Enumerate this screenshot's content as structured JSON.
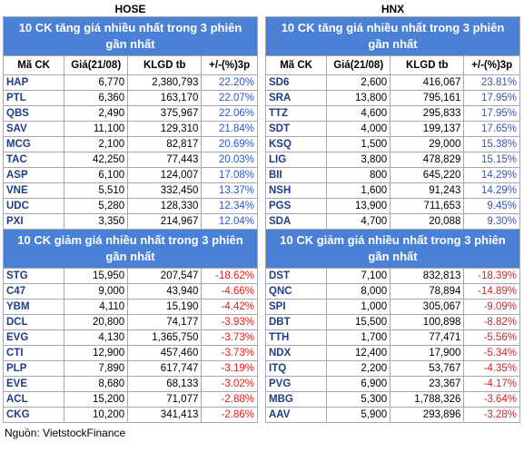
{
  "exchanges": [
    {
      "name": "HOSE",
      "columns": [
        "Mã CK",
        "Giá(21/08)",
        "KLGD tb",
        "+/-(%)3p"
      ],
      "gainers": {
        "title": "10 CK tăng giá nhiều nhất trong 3 phiên gần nhất",
        "rows": [
          [
            "HAP",
            "6,770",
            "2,380,793",
            "22.20%"
          ],
          [
            "PTL",
            "6,360",
            "163,170",
            "22.07%"
          ],
          [
            "QBS",
            "2,490",
            "375,967",
            "22.06%"
          ],
          [
            "SAV",
            "11,100",
            "129,310",
            "21.84%"
          ],
          [
            "MCG",
            "2,100",
            "82,817",
            "20.69%"
          ],
          [
            "TAC",
            "42,250",
            "77,443",
            "20.03%"
          ],
          [
            "ASP",
            "6,100",
            "124,007",
            "17.08%"
          ],
          [
            "VNE",
            "5,510",
            "332,450",
            "13.37%"
          ],
          [
            "UDC",
            "5,280",
            "128,330",
            "12.34%"
          ],
          [
            "PXI",
            "3,350",
            "214,967",
            "12.04%"
          ]
        ]
      },
      "losers": {
        "title": "10 CK giảm giá nhiều nhất trong 3 phiên gần nhất",
        "rows": [
          [
            "STG",
            "15,950",
            "207,547",
            "-18.62%"
          ],
          [
            "C47",
            "9,000",
            "43,940",
            "-4.66%"
          ],
          [
            "YBM",
            "4,110",
            "15,190",
            "-4.42%"
          ],
          [
            "DCL",
            "20,800",
            "74,177",
            "-3.93%"
          ],
          [
            "EVG",
            "4,130",
            "1,365,750",
            "-3.73%"
          ],
          [
            "CTI",
            "12,900",
            "457,460",
            "-3.73%"
          ],
          [
            "PLP",
            "7,890",
            "617,747",
            "-3.19%"
          ],
          [
            "EVE",
            "8,680",
            "68,133",
            "-3.02%"
          ],
          [
            "ACL",
            "15,200",
            "71,077",
            "-2.88%"
          ],
          [
            "CKG",
            "10,200",
            "341,413",
            "-2.86%"
          ]
        ]
      }
    },
    {
      "name": "HNX",
      "columns": [
        "Mã CK",
        "Giá(21/08)",
        "KLGD tb",
        "+/-(%)3p"
      ],
      "gainers": {
        "title": "10 CK tăng giá nhiều nhất trong 3 phiên gần nhất",
        "rows": [
          [
            "SD6",
            "2,600",
            "416,067",
            "23.81%"
          ],
          [
            "SRA",
            "13,800",
            "795,161",
            "17.95%"
          ],
          [
            "TTZ",
            "4,600",
            "295,833",
            "17.95%"
          ],
          [
            "SDT",
            "4,000",
            "199,137",
            "17.65%"
          ],
          [
            "KSQ",
            "1,500",
            "29,000",
            "15.38%"
          ],
          [
            "LIG",
            "3,800",
            "478,829",
            "15.15%"
          ],
          [
            "BII",
            "800",
            "645,220",
            "14.29%"
          ],
          [
            "NSH",
            "1,600",
            "91,243",
            "14.29%"
          ],
          [
            "PGS",
            "13,900",
            "711,653",
            "9.45%"
          ],
          [
            "SDA",
            "4,700",
            "20,088",
            "9.30%"
          ]
        ]
      },
      "losers": {
        "title": "10 CK giảm giá nhiều nhất trong 3 phiên gần nhất",
        "rows": [
          [
            "DST",
            "7,100",
            "832,813",
            "-18.39%"
          ],
          [
            "QNC",
            "8,000",
            "78,894",
            "-14.89%"
          ],
          [
            "SPI",
            "1,000",
            "305,067",
            "-9.09%"
          ],
          [
            "DBT",
            "15,500",
            "100,898",
            "-8.82%"
          ],
          [
            "TTH",
            "1,700",
            "77,471",
            "-5.56%"
          ],
          [
            "NDX",
            "12,400",
            "17,900",
            "-5.34%"
          ],
          [
            "ITQ",
            "2,200",
            "53,767",
            "-4.35%"
          ],
          [
            "PVG",
            "6,900",
            "23,367",
            "-4.17%"
          ],
          [
            "MBG",
            "5,300",
            "1,788,326",
            "-3.64%"
          ],
          [
            "AAV",
            "5,900",
            "293,896",
            "-3.28%"
          ]
        ]
      }
    }
  ],
  "footer": "Nguồn: VietstockFinance"
}
